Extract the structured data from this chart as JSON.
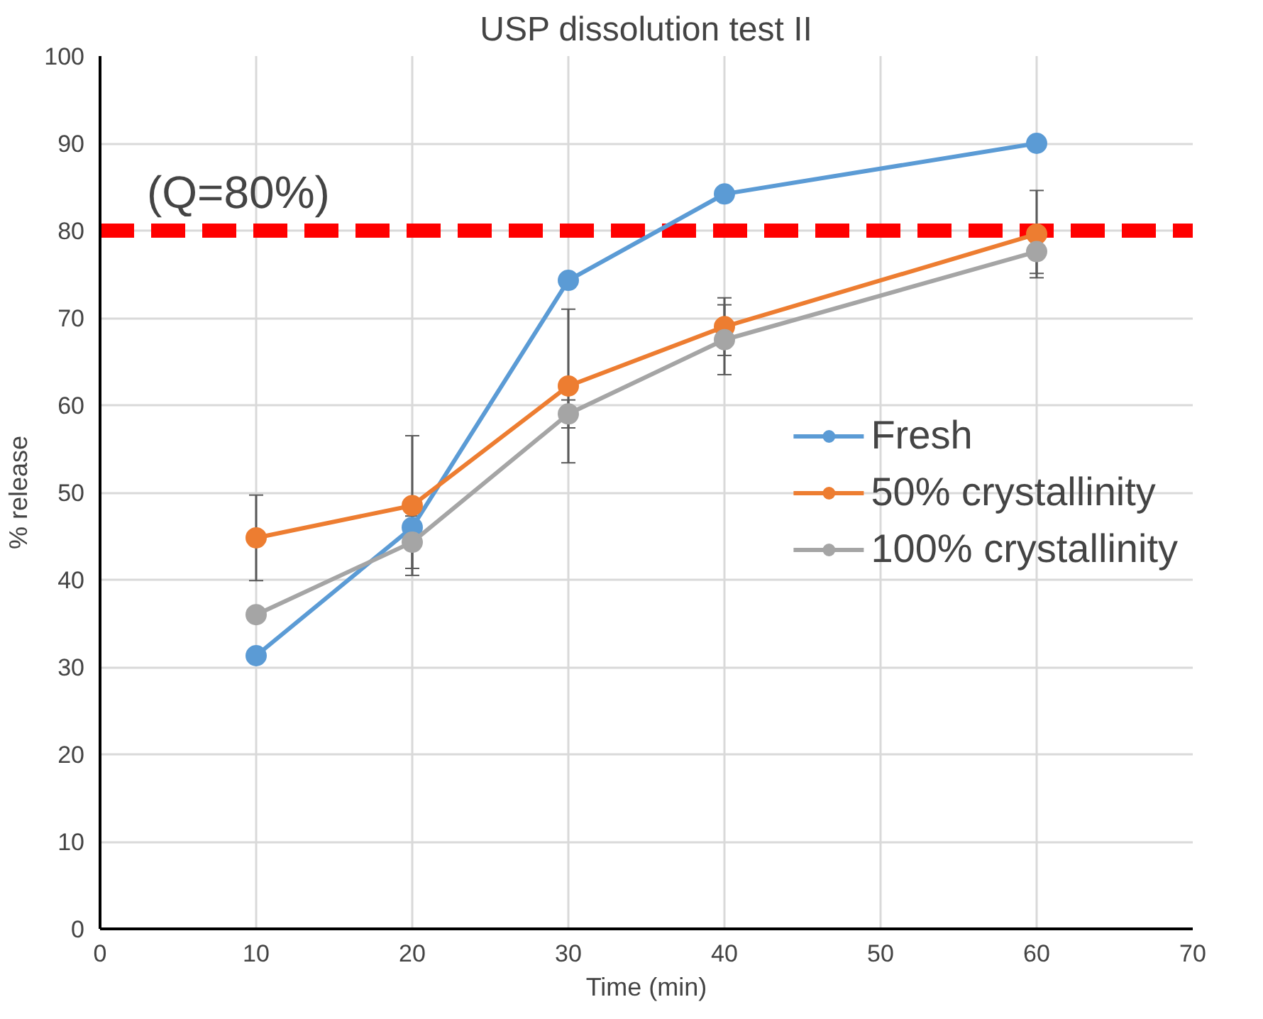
{
  "chart_data": {
    "type": "line",
    "title": "USP dissolution test II",
    "xlabel": "Time (min)",
    "ylabel": "% release",
    "x": [
      10,
      20,
      30,
      40,
      60
    ],
    "series": [
      {
        "name": "Fresh",
        "color": "#5b9bd5",
        "values": [
          31.3,
          46,
          74.3,
          84.2,
          90
        ]
      },
      {
        "name": "50% crystallinity",
        "color": "#ed7d31",
        "values": [
          44.8,
          48.5,
          62.2,
          69,
          79.6
        ],
        "errors": [
          4.9,
          8,
          8.8,
          3.3,
          5
        ]
      },
      {
        "name": "100% crystallinity",
        "color": "#a5a5a5",
        "values": [
          36,
          44.3,
          59,
          67.5,
          77.6
        ],
        "errors": [
          null,
          3,
          1.6,
          4,
          2.5
        ]
      }
    ],
    "xlim": [
      0,
      70
    ],
    "xticks": [
      0,
      10,
      20,
      30,
      40,
      50,
      60,
      70
    ],
    "ylim": [
      0,
      100
    ],
    "yticks": [
      0,
      10,
      20,
      30,
      40,
      50,
      60,
      70,
      80,
      90,
      100
    ],
    "ref_lines": [
      {
        "axis": "y",
        "value": 80,
        "label": "(Q=80%)",
        "color": "#ff0000",
        "line_style": "dashed"
      }
    ],
    "grid": true,
    "legend": "right",
    "marker": "circle",
    "line_style": "solid"
  }
}
